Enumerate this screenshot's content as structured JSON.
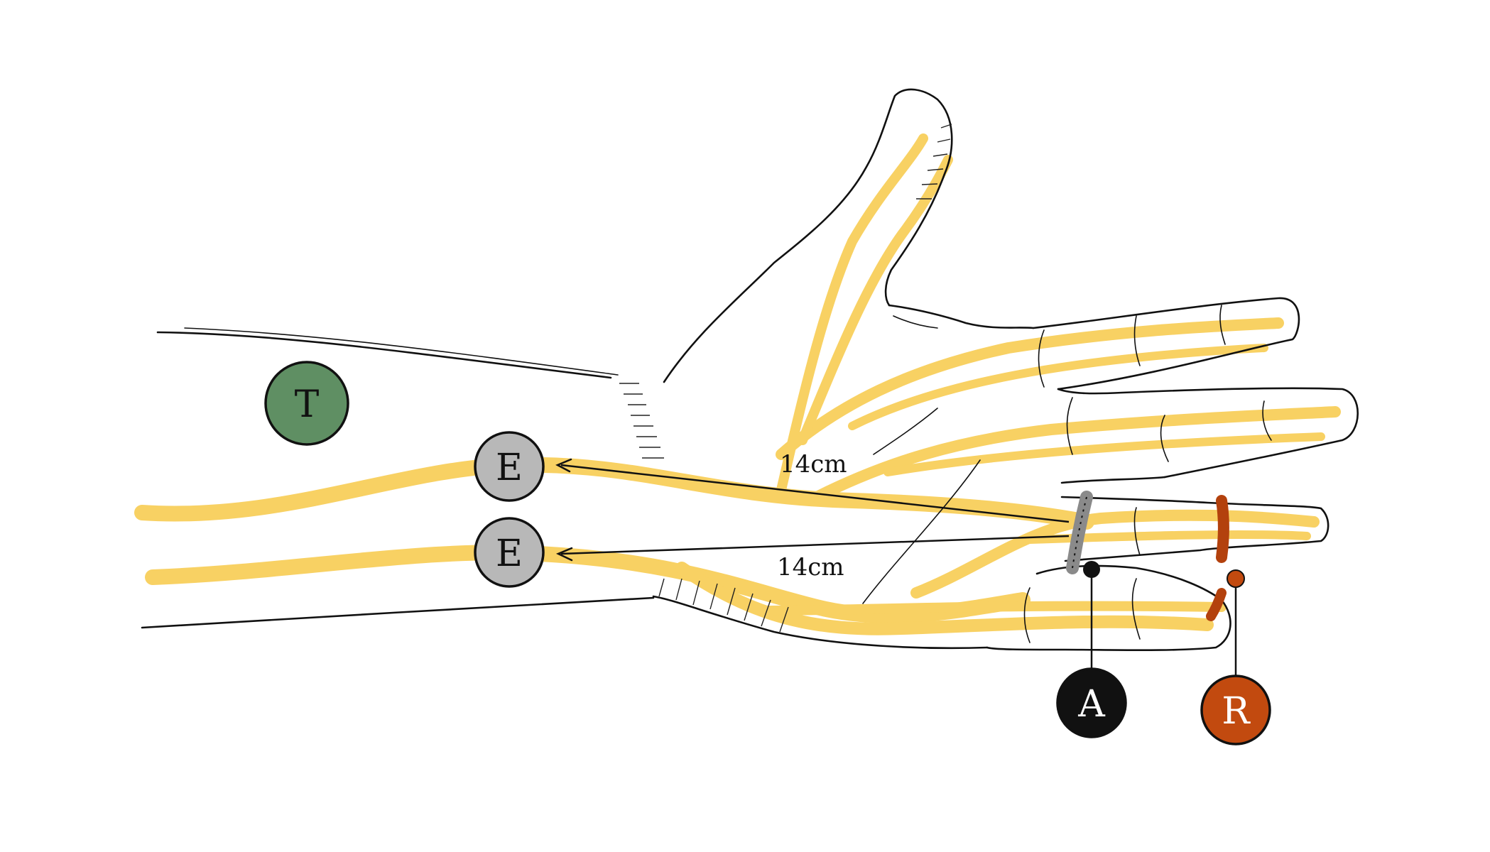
{
  "electrodes": {
    "ground": {
      "letter": "T",
      "fill": "#5f8f63",
      "text_color": "#111111"
    },
    "recording_upper": {
      "letter": "E",
      "fill": "#b8b8b8",
      "text_color": "#111111"
    },
    "recording_lower": {
      "letter": "E",
      "fill": "#b8b8b8",
      "text_color": "#111111"
    },
    "active_ring": {
      "letter": "A",
      "fill": "#111111",
      "text_color": "#ffffff",
      "ring_color": "#8a8a8a"
    },
    "reference_ring": {
      "letter": "R",
      "fill": "#c24a0f",
      "text_color": "#ffffff",
      "ring_color": "#b3410d"
    }
  },
  "distances": {
    "upper": "14cm",
    "lower": "14cm"
  },
  "colors": {
    "nerve": "#f7c948",
    "outline": "#111111"
  }
}
